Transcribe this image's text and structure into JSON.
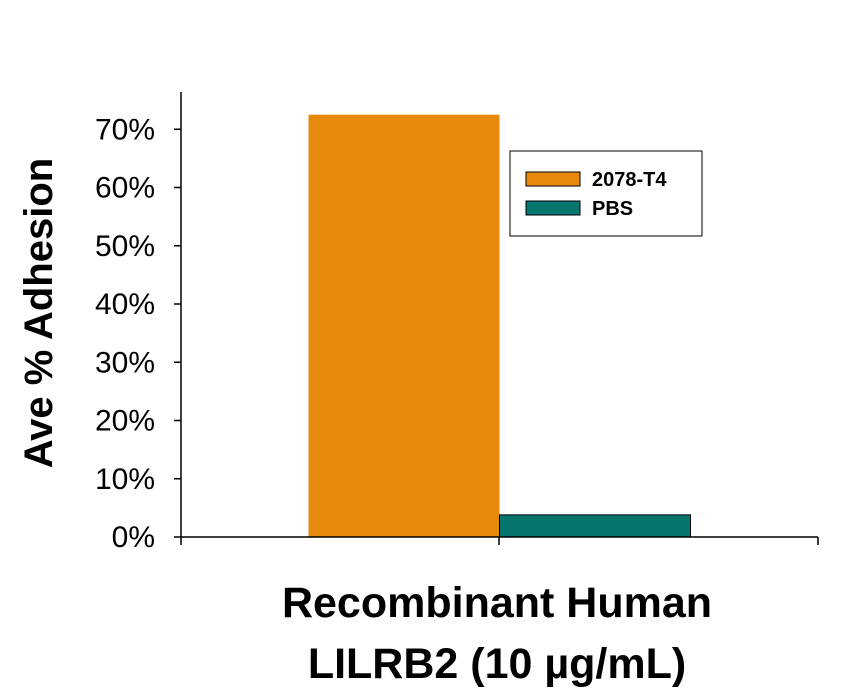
{
  "chart_data": {
    "type": "bar",
    "title": "",
    "xlabel_line1": "Recombinant Human",
    "xlabel_line2": "LILRB2 (10 µg/mL)",
    "ylabel": "Ave % Adhesion",
    "ylim": [
      0,
      70
    ],
    "yticks": [
      "0%",
      "10%",
      "20%",
      "30%",
      "40%",
      "50%",
      "60%",
      "70%"
    ],
    "categories": [
      ""
    ],
    "series": [
      {
        "name": "2078-T4",
        "color": "#e8890c",
        "values": [
          72.5
        ]
      },
      {
        "name": "PBS",
        "color": "#04766e",
        "values": [
          3.8
        ]
      }
    ],
    "legend_position": "top-right",
    "grid": false
  }
}
